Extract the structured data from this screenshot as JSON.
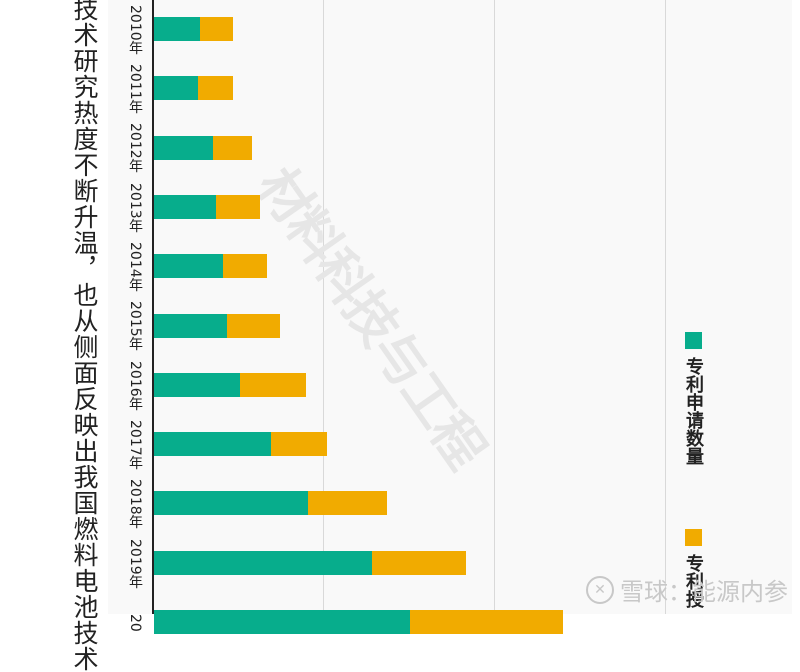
{
  "caption": "技术研究热度不断升温，也从侧面反映出我国燃料电池技术",
  "watermark": "材料科技与工程",
  "footer": {
    "logo_glyph": "✕",
    "text": "雪球：能源内参"
  },
  "colors": {
    "applications": "#07ad8c",
    "grants": "#f1ab00",
    "axis": "#222222",
    "grid": "#d9d9d9"
  },
  "legend": [
    {
      "label": "专利申请数量",
      "color": "#07ad8c"
    },
    {
      "label": "专利授",
      "color": "#f1ab00"
    }
  ],
  "chart_data": {
    "type": "bar",
    "orientation": "horizontal-stacked (image rotated 90°)",
    "title": "",
    "xlabel": "",
    "ylabel": "",
    "categories": [
      "2010年",
      "2011年",
      "2012年",
      "2013年",
      "2014年",
      "2015年",
      "2016年",
      "2017年",
      "2018年",
      "2019年",
      "20"
    ],
    "series": [
      {
        "name": "专利申请数量",
        "color": "#07ad8c",
        "values": [
          46,
          44,
          59,
          62,
          69,
          73,
          86,
          117,
          154,
          218,
          256
        ]
      },
      {
        "name": "专利授",
        "color": "#f1ab00",
        "values": [
          33,
          35,
          39,
          44,
          44,
          53,
          66,
          56,
          79,
          94,
          153
        ]
      }
    ],
    "units_note": "values in relative pixel units; gridlines every ~171 units, no tick labels visible",
    "gridlines": [
      170,
      341,
      512
    ],
    "grid": true,
    "legend_position": "right"
  }
}
